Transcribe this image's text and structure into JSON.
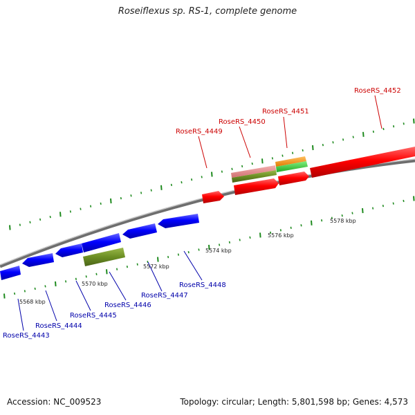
{
  "title": "Roseiflexus sp. RS-1, complete genome",
  "footer": {
    "accession": "Accession: NC_009523",
    "summary": "Topology: circular; Length: 5,801,598 bp; Genes: 4,573"
  },
  "colors": {
    "forward_gene": "#ff0000",
    "reverse_gene": "#0000ff",
    "forward_label": "#cc0000",
    "reverse_label": "#0000aa",
    "backbone": "#888888",
    "tick": "#1e8a1e",
    "olive": "#6b8e23",
    "pink": "#e08080",
    "orange": "#ff9900",
    "green": "#33cc33"
  },
  "scale_labels": [
    "5568 kbp",
    "5570 kbp",
    "5572 kbp",
    "5574 kbp",
    "5576 kbp",
    "5578 kbp"
  ],
  "forward_genes": [
    "RoseRS_4449",
    "RoseRS_4450",
    "RoseRS_4451",
    "RoseRS_4452"
  ],
  "reverse_genes": [
    "RoseRS_4443",
    "RoseRS_4444",
    "RoseRS_4445",
    "RoseRS_4446",
    "RoseRS_4447",
    "RoseRS_4448"
  ]
}
